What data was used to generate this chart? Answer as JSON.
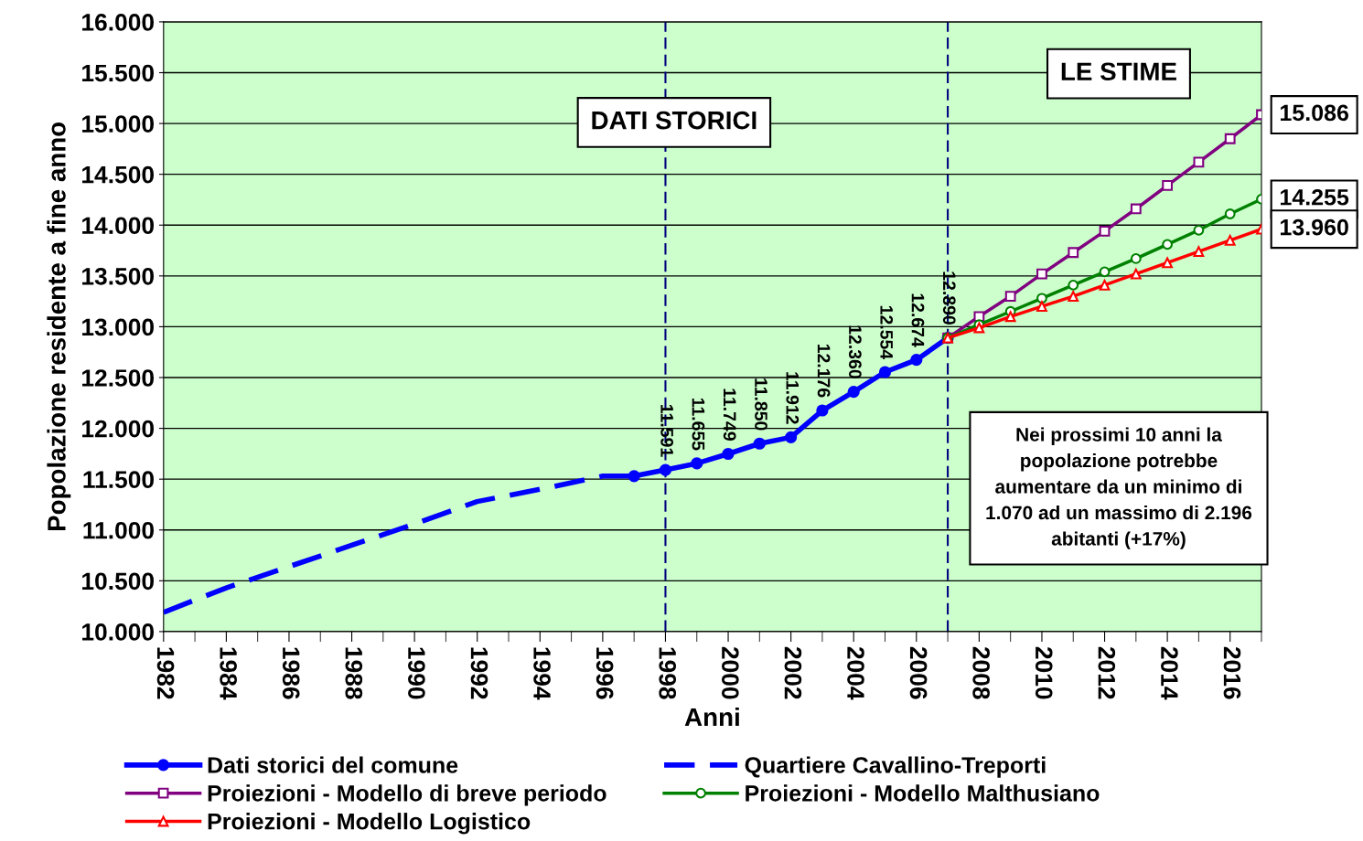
{
  "chart_data": {
    "type": "line",
    "xlabel": "Anni",
    "ylabel": "Popolazione residente a fine anno",
    "xlim": [
      1982,
      2017
    ],
    "xticks": [
      1982,
      1984,
      1986,
      1988,
      1990,
      1992,
      1994,
      1996,
      1998,
      2000,
      2002,
      2004,
      2006,
      2008,
      2010,
      2012,
      2014,
      2016
    ],
    "ylim": [
      10000,
      16000
    ],
    "yticks": [
      {
        "value": 10000,
        "label": "10.000"
      },
      {
        "value": 10500,
        "label": "10.500"
      },
      {
        "value": 11000,
        "label": "11.000"
      },
      {
        "value": 11500,
        "label": "11.500"
      },
      {
        "value": 12000,
        "label": "12.000"
      },
      {
        "value": 12500,
        "label": "12.500"
      },
      {
        "value": 13000,
        "label": "13.000"
      },
      {
        "value": 13500,
        "label": "13.500"
      },
      {
        "value": 14000,
        "label": "14.000"
      },
      {
        "value": 14500,
        "label": "14.500"
      },
      {
        "value": 15000,
        "label": "15.000"
      },
      {
        "value": 15500,
        "label": "15.500"
      },
      {
        "value": 16000,
        "label": "16.000"
      }
    ],
    "grid": "y",
    "legend": "bottom",
    "series": [
      {
        "name": "Dati storici del comune",
        "color": "#0000ff",
        "marker": "circle",
        "line_style": "solid",
        "x": [
          1997,
          1998,
          1999,
          2000,
          2001,
          2002,
          2003,
          2004,
          2005,
          2006,
          2007
        ],
        "values": [
          11530,
          11591,
          11655,
          11749,
          11850,
          11912,
          12176,
          12360,
          12554,
          12674,
          12890
        ],
        "value_labels": [
          null,
          "11.591",
          "11.655",
          "11.749",
          "11.850",
          "11.912",
          "12.176",
          "12.360",
          "12.554",
          "12.674",
          "12.890"
        ]
      },
      {
        "name": "Quartiere Cavallino-Treporti",
        "color": "#0000ff",
        "marker": "none",
        "line_style": "dashed",
        "x": [
          1982,
          1984,
          1986,
          1988,
          1990,
          1992,
          1994,
          1996,
          1997
        ],
        "values": [
          10190,
          10430,
          10640,
          10850,
          11060,
          11280,
          11400,
          11530,
          11530
        ]
      },
      {
        "name": "Proiezioni - Modello di breve periodo",
        "color": "#800080",
        "marker": "square",
        "line_style": "solid",
        "x": [
          2007,
          2008,
          2009,
          2010,
          2011,
          2012,
          2013,
          2014,
          2015,
          2016,
          2017
        ],
        "values": [
          12890,
          13100,
          13300,
          13520,
          13730,
          13940,
          14160,
          14390,
          14620,
          14850,
          15086
        ],
        "value_labels": [
          null,
          null,
          null,
          null,
          null,
          null,
          null,
          null,
          null,
          null,
          "15.086"
        ]
      },
      {
        "name": "Proiezioni - Modello Malthusiano",
        "color": "#008000",
        "marker": "circle",
        "line_style": "solid",
        "x": [
          2007,
          2008,
          2009,
          2010,
          2011,
          2012,
          2013,
          2014,
          2015,
          2016,
          2017
        ],
        "values": [
          12890,
          13020,
          13150,
          13280,
          13410,
          13540,
          13670,
          13810,
          13950,
          14110,
          14255
        ],
        "value_labels": [
          null,
          null,
          null,
          null,
          null,
          null,
          null,
          null,
          null,
          null,
          "14.255"
        ]
      },
      {
        "name": "Proiezioni - Modello Logistico",
        "color": "#ff0000",
        "marker": "triangle",
        "line_style": "solid",
        "x": [
          2007,
          2008,
          2009,
          2010,
          2011,
          2012,
          2013,
          2014,
          2015,
          2016,
          2017
        ],
        "values": [
          12890,
          12990,
          13100,
          13200,
          13300,
          13410,
          13520,
          13630,
          13740,
          13850,
          13960
        ],
        "value_labels": [
          null,
          null,
          null,
          null,
          null,
          null,
          null,
          null,
          null,
          null,
          "13.960"
        ]
      }
    ],
    "ref_lines": [
      {
        "axis": "x",
        "value": 1998,
        "color": "#000080",
        "line_style": "dashed"
      },
      {
        "axis": "x",
        "value": 2007,
        "color": "#000080",
        "line_style": "dashed"
      }
    ],
    "annotations": [
      "DATI STORICI",
      "LE STIME",
      "Nei prossimi 10 anni la popolazione potrebbe aumentare da un minimo di 1.070 ad un massimo di 2.196 abitanti (+17%)"
    ]
  }
}
